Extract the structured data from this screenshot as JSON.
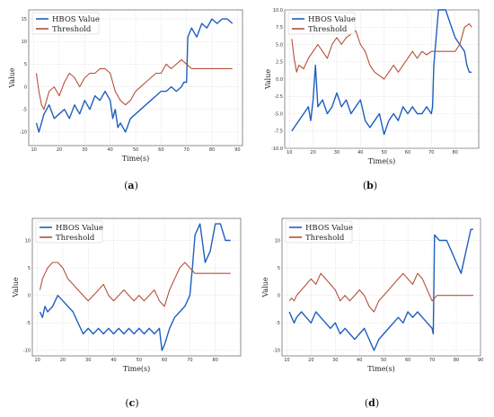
{
  "chart_data": [
    {
      "type": "line",
      "panel_label": "(a)",
      "xlabel": "Time(s)",
      "ylabel": "Value",
      "xlim": [
        8,
        92
      ],
      "ylim": [
        -13,
        17
      ],
      "xticks": [
        10,
        20,
        30,
        40,
        50,
        60,
        70,
        80,
        90
      ],
      "yticks": [
        -10,
        -5,
        0,
        5,
        10,
        15
      ],
      "grid": true,
      "legend_position": "top-left",
      "series": [
        {
          "name": "HBOS Value",
          "color": "#1f5fbf",
          "x": [
            11,
            12,
            13,
            14,
            16,
            18,
            20,
            22,
            24,
            26,
            28,
            30,
            32,
            34,
            36,
            38,
            40,
            41,
            42,
            43,
            44,
            46,
            48,
            50,
            52,
            54,
            56,
            58,
            60,
            62,
            64,
            66,
            68,
            69,
            70,
            70.5,
            72,
            74,
            76,
            78,
            80,
            82,
            84,
            86,
            88
          ],
          "y": [
            -8,
            -10,
            -8,
            -6,
            -4,
            -7,
            -6,
            -5,
            -7,
            -4,
            -6,
            -3,
            -5,
            -2,
            -3,
            -1,
            -3,
            -7,
            -5,
            -9,
            -8,
            -10,
            -7,
            -6,
            -5,
            -4,
            -3,
            -2,
            -1,
            -1,
            0,
            -1,
            0,
            1,
            1,
            11,
            13,
            11,
            14,
            13,
            15,
            14,
            15,
            15,
            14
          ]
        },
        {
          "name": "Threshold",
          "color": "#b5503a",
          "x": [
            11,
            12,
            13,
            14,
            15,
            16,
            18,
            20,
            22,
            24,
            26,
            28,
            30,
            32,
            34,
            36,
            38,
            40,
            42,
            44,
            46,
            48,
            50,
            52,
            54,
            56,
            58,
            60,
            62,
            64,
            66,
            68,
            70,
            72,
            80,
            88
          ],
          "y": [
            3,
            -1,
            -4,
            -5,
            -3,
            -1,
            0,
            -2,
            1,
            3,
            2,
            0,
            2,
            3,
            3,
            4,
            4,
            3,
            -1,
            -3,
            -4,
            -3,
            -1,
            0,
            1,
            2,
            3,
            3,
            5,
            4,
            5,
            6,
            5,
            4,
            4,
            4
          ]
        }
      ]
    },
    {
      "type": "line",
      "panel_label": "(b)",
      "xlabel": "Time(s)",
      "ylabel": "Value",
      "xlim": [
        8,
        90
      ],
      "ylim": [
        -10,
        10
      ],
      "xticks": [
        10,
        20,
        30,
        40,
        50,
        60,
        70,
        80
      ],
      "yticks": [
        -10.0,
        -7.5,
        -5.0,
        -2.5,
        0.0,
        2.5,
        5.0,
        7.5,
        10.0
      ],
      "grid": true,
      "legend_position": "top-left",
      "series": [
        {
          "name": "HBOS Value",
          "color": "#1f5fbf",
          "x": [
            11,
            12,
            14,
            16,
            18,
            19,
            20,
            21,
            22,
            24,
            26,
            28,
            30,
            32,
            34,
            36,
            38,
            40,
            42,
            44,
            46,
            48,
            50,
            52,
            54,
            56,
            58,
            60,
            62,
            64,
            66,
            68,
            70,
            70.5,
            71,
            73,
            76,
            78,
            80,
            82,
            84,
            85,
            86,
            87
          ],
          "y": [
            -7.5,
            -7,
            -6,
            -5,
            -4,
            -6,
            -3,
            2,
            -4,
            -3,
            -5,
            -4,
            -2,
            -4,
            -3,
            -5,
            -4,
            -3,
            -6,
            -7,
            -6,
            -5,
            -8,
            -6,
            -5,
            -6,
            -4,
            -5,
            -4,
            -5,
            -5,
            -4,
            -5,
            -4,
            2,
            10,
            10,
            8,
            6,
            5,
            4,
            2,
            1,
            1
          ]
        },
        {
          "name": "Threshold",
          "color": "#b5503a",
          "x": [
            11,
            12,
            13,
            14,
            16,
            18,
            20,
            22,
            24,
            26,
            28,
            30,
            32,
            34,
            36,
            38,
            40,
            42,
            44,
            46,
            48,
            50,
            52,
            54,
            56,
            58,
            60,
            62,
            64,
            66,
            68,
            70,
            72,
            80,
            82,
            84,
            86,
            87
          ],
          "y": [
            5.8,
            3,
            1,
            2,
            1.5,
            3,
            4,
            5,
            4,
            3,
            5,
            6,
            5,
            6,
            6.5,
            7,
            5,
            4,
            2,
            1,
            0.5,
            0,
            1,
            2,
            1,
            2,
            3,
            4,
            3,
            4,
            3.5,
            4,
            4,
            4,
            5,
            7.5,
            8,
            7.5
          ]
        }
      ]
    },
    {
      "type": "line",
      "panel_label": "(c)",
      "xlabel": "Time(s)",
      "ylabel": "Value",
      "xlim": [
        8,
        90
      ],
      "ylim": [
        -11,
        14
      ],
      "xticks": [
        10,
        20,
        30,
        40,
        50,
        60,
        70,
        80
      ],
      "yticks": [
        -10,
        -5,
        0,
        5,
        10
      ],
      "grid": true,
      "legend_position": "top-left",
      "series": [
        {
          "name": "HBOS Value",
          "color": "#1f5fbf",
          "x": [
            11,
            12,
            13,
            14,
            16,
            18,
            20,
            22,
            24,
            26,
            28,
            30,
            32,
            34,
            36,
            38,
            40,
            42,
            44,
            46,
            48,
            50,
            52,
            54,
            56,
            58,
            59,
            60,
            62,
            64,
            66,
            68,
            70,
            71,
            72,
            74,
            76,
            78,
            80,
            82,
            84,
            86
          ],
          "y": [
            -3,
            -4,
            -2,
            -3,
            -2,
            0,
            -1,
            -2,
            -3,
            -5,
            -7,
            -6,
            -7,
            -6,
            -7,
            -6,
            -7,
            -6,
            -7,
            -6,
            -7,
            -6,
            -7,
            -6,
            -7,
            -6,
            -10,
            -9,
            -6,
            -4,
            -3,
            -2,
            0,
            5,
            11,
            13,
            6,
            8,
            13,
            13,
            10,
            10
          ]
        },
        {
          "name": "Threshold",
          "color": "#b5503a",
          "x": [
            11,
            12,
            13,
            14,
            16,
            18,
            20,
            22,
            24,
            26,
            28,
            30,
            32,
            34,
            36,
            38,
            40,
            42,
            44,
            46,
            48,
            50,
            52,
            54,
            56,
            58,
            60,
            62,
            64,
            66,
            68,
            70,
            72,
            80,
            86
          ],
          "y": [
            1,
            3,
            4,
            5,
            6,
            6,
            5,
            3,
            2,
            1,
            0,
            -1,
            0,
            1,
            2,
            0,
            -1,
            0,
            1,
            0,
            -1,
            0,
            -1,
            0,
            1,
            -1,
            -2,
            1,
            3,
            5,
            6,
            5,
            4,
            4,
            4
          ]
        }
      ]
    },
    {
      "type": "line",
      "panel_label": "(d)",
      "xlabel": "Time(s)",
      "ylabel": "Value",
      "xlim": [
        8,
        90
      ],
      "ylim": [
        -11,
        14
      ],
      "xticks": [
        10,
        20,
        30,
        40,
        50,
        60,
        70,
        80,
        90
      ],
      "yticks": [
        -10,
        -5,
        0,
        5,
        10
      ],
      "grid": true,
      "legend_position": "top-left",
      "series": [
        {
          "name": "HBOS Value",
          "color": "#1f5fbf",
          "x": [
            11,
            12,
            13,
            14,
            16,
            18,
            20,
            22,
            24,
            26,
            28,
            30,
            32,
            34,
            36,
            38,
            40,
            42,
            44,
            46,
            48,
            50,
            52,
            54,
            56,
            58,
            60,
            62,
            64,
            66,
            68,
            70,
            70.5,
            71,
            73,
            76,
            78,
            80,
            82,
            84,
            85,
            86,
            87
          ],
          "y": [
            -3,
            -4,
            -5,
            -4,
            -3,
            -4,
            -5,
            -3,
            -4,
            -5,
            -6,
            -5,
            -7,
            -6,
            -7,
            -8,
            -7,
            -6,
            -8,
            -10,
            -8,
            -7,
            -6,
            -5,
            -4,
            -5,
            -3,
            -4,
            -3,
            -4,
            -5,
            -6,
            -7,
            11,
            10,
            10,
            8,
            6,
            4,
            8,
            10,
            12,
            12
          ]
        },
        {
          "name": "Threshold",
          "color": "#b5503a",
          "x": [
            11,
            12,
            13,
            14,
            16,
            18,
            20,
            22,
            24,
            26,
            28,
            30,
            32,
            34,
            36,
            38,
            40,
            42,
            44,
            46,
            48,
            50,
            52,
            54,
            56,
            58,
            60,
            62,
            64,
            66,
            68,
            70,
            72,
            80,
            87
          ],
          "y": [
            -1,
            -0.5,
            -1,
            0,
            1,
            2,
            3,
            2,
            4,
            3,
            2,
            1,
            -1,
            0,
            -1,
            0,
            1,
            0,
            -2,
            -3,
            -1,
            0,
            1,
            2,
            3,
            4,
            3,
            2,
            4,
            3,
            1,
            -1,
            0,
            0,
            0
          ]
        }
      ]
    }
  ]
}
